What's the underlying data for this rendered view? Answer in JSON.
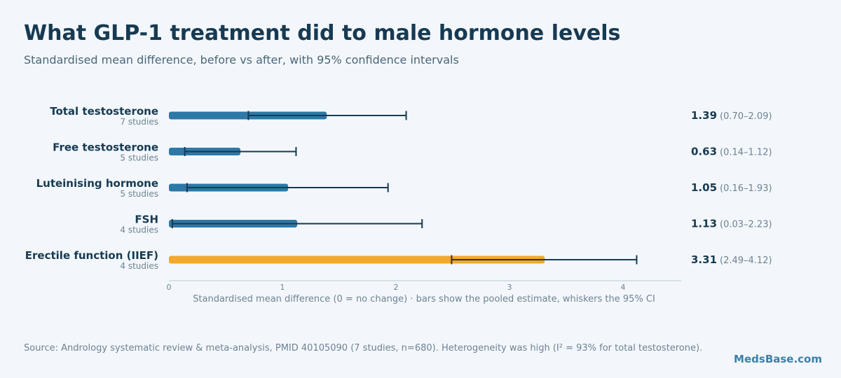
{
  "header": {
    "title": "What GLP-1 treatment did to male hormone levels",
    "subtitle": "Standardised mean difference, before vs after, with 95% confidence intervals"
  },
  "footer": {
    "source": "Source: Andrology systematic review & meta-analysis, PMID 40105090 (7 studies, n=680). Heterogeneity was high (I² = 93% for total testosterone).",
    "brand": "MedsBase.com"
  },
  "colors": {
    "hormone_bar": "#2e78a8",
    "function_bar": "#f2a92a",
    "whisker": "#173a52",
    "axis": "#b9c8d3"
  },
  "chart_data": {
    "type": "bar",
    "orientation": "horizontal",
    "xlabel": "Standardised mean difference (0 = no change) · bars show the pooled estimate, whiskers the 95% CI",
    "xlim": [
      0,
      4.5
    ],
    "xticks": [
      0,
      1,
      2,
      3,
      4
    ],
    "categories": [
      {
        "label": "Total testosterone",
        "studies": "7 studies",
        "value": 1.39,
        "ci": [
          0.7,
          2.09
        ],
        "value_label": "1.39",
        "ci_label": "(0.70–2.09)",
        "color": "#2e78a8"
      },
      {
        "label": "Free testosterone",
        "studies": "5 studies",
        "value": 0.63,
        "ci": [
          0.14,
          1.12
        ],
        "value_label": "0.63",
        "ci_label": "(0.14–1.12)",
        "color": "#2e78a8"
      },
      {
        "label": "Luteinising hormone",
        "studies": "5 studies",
        "value": 1.05,
        "ci": [
          0.16,
          1.93
        ],
        "value_label": "1.05",
        "ci_label": "(0.16–1.93)",
        "color": "#2e78a8"
      },
      {
        "label": "FSH",
        "studies": "4 studies",
        "value": 1.13,
        "ci": [
          0.03,
          2.23
        ],
        "value_label": "1.13",
        "ci_label": "(0.03–2.23)",
        "color": "#2e78a8"
      },
      {
        "label": "Erectile function (IIEF)",
        "studies": "4 studies",
        "value": 3.31,
        "ci": [
          2.49,
          4.12
        ],
        "value_label": "3.31",
        "ci_label": "(2.49–4.12)",
        "color": "#f2a92a"
      }
    ]
  }
}
